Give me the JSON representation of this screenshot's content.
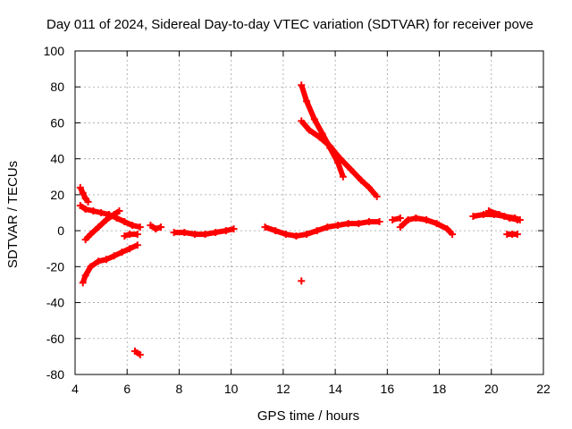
{
  "chart_data": {
    "type": "scatter",
    "title": "Day 011 of 2024, Sidereal Day-to-day VTEC variation (SDTVAR) for receiver pove",
    "xlabel": "GPS time / hours",
    "ylabel": "SDTVAR / TECUs",
    "xlim": [
      4,
      22
    ],
    "ylim": [
      -80,
      100
    ],
    "xticks": [
      4,
      6,
      8,
      10,
      12,
      14,
      16,
      18,
      20,
      22
    ],
    "yticks": [
      -80,
      -60,
      -40,
      -20,
      0,
      20,
      40,
      60,
      80,
      100
    ],
    "grid": true,
    "marker": "+",
    "color": "#ff0000",
    "series": [
      {
        "name": "s1",
        "x": [
          4.2,
          4.3,
          4.4,
          4.5
        ],
        "y": [
          24,
          21,
          18,
          16
        ]
      },
      {
        "name": "s2",
        "x": [
          4.2,
          4.4,
          4.7,
          5.0,
          5.3,
          5.6,
          5.9,
          6.2,
          6.5
        ],
        "y": [
          14,
          12,
          11,
          10,
          9,
          7,
          5,
          3,
          2
        ]
      },
      {
        "name": "s3",
        "x": [
          4.4,
          4.6,
          4.9,
          5.2,
          5.5,
          5.7
        ],
        "y": [
          -5,
          -2,
          2,
          6,
          9,
          11
        ]
      },
      {
        "name": "s4",
        "x": [
          4.3,
          4.4,
          4.6,
          4.9,
          5.2,
          5.5,
          5.8,
          6.1,
          6.4
        ],
        "y": [
          -29,
          -25,
          -20,
          -17,
          -16,
          -14,
          -12,
          -10,
          -8
        ]
      },
      {
        "name": "s5",
        "x": [
          5.9,
          6.1,
          6.4
        ],
        "y": [
          -3,
          -2,
          -2
        ]
      },
      {
        "name": "s6",
        "x": [
          6.9,
          7.1,
          7.3
        ],
        "y": [
          3,
          1,
          2
        ]
      },
      {
        "name": "s7",
        "x": [
          6.3,
          6.5
        ],
        "y": [
          -67,
          -69
        ]
      },
      {
        "name": "s8",
        "x": [
          7.8,
          8.2,
          8.6,
          9.0,
          9.4,
          9.8,
          10.1
        ],
        "y": [
          -1,
          -1,
          -2,
          -2,
          -1,
          0,
          1
        ]
      },
      {
        "name": "s9",
        "x": [
          11.3,
          11.7,
          12.1,
          12.5,
          12.9,
          13.3,
          13.7,
          14.1,
          14.5,
          14.9,
          15.3,
          15.7
        ],
        "y": [
          2,
          0,
          -2,
          -3,
          -2,
          0,
          2,
          3,
          4,
          4,
          5,
          5
        ]
      },
      {
        "name": "s10",
        "x": [
          12.7,
          12.9,
          13.2,
          13.5,
          13.8,
          14.1,
          14.3
        ],
        "y": [
          81,
          72,
          62,
          54,
          46,
          38,
          30
        ]
      },
      {
        "name": "s11",
        "x": [
          12.7,
          13.0,
          13.4,
          13.8,
          14.2,
          14.6,
          15.0,
          15.3,
          15.6
        ],
        "y": [
          61,
          56,
          52,
          47,
          40,
          34,
          28,
          24,
          19
        ]
      },
      {
        "name": "s12",
        "x": [
          12.7
        ],
        "y": [
          -28
        ]
      },
      {
        "name": "s13",
        "x": [
          16.2,
          16.5
        ],
        "y": [
          6,
          7
        ]
      },
      {
        "name": "s14",
        "x": [
          16.5,
          16.8,
          17.1,
          17.5,
          17.9,
          18.3,
          18.5
        ],
        "y": [
          2,
          6,
          7,
          6,
          4,
          1,
          -2
        ]
      },
      {
        "name": "s15",
        "x": [
          19.3,
          19.7,
          20.1,
          20.5,
          20.9,
          21.1
        ],
        "y": [
          8,
          9,
          9,
          8,
          7,
          6
        ]
      },
      {
        "name": "s16",
        "x": [
          19.9,
          20.3,
          20.7,
          21.0
        ],
        "y": [
          11,
          9,
          7,
          6
        ]
      },
      {
        "name": "s17",
        "x": [
          20.6,
          20.8,
          21.0
        ],
        "y": [
          -2,
          -2,
          -2
        ]
      }
    ]
  }
}
